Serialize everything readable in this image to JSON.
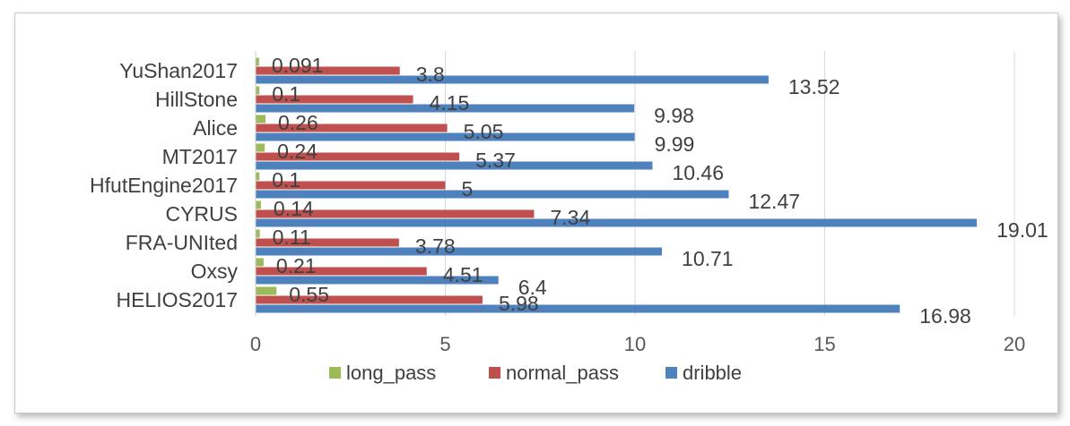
{
  "chart_data": {
    "type": "bar",
    "orientation": "horizontal",
    "categories": [
      "YuShan2017",
      "HillStone",
      "Alice",
      "MT2017",
      "HfutEngine2017",
      "CYRUS",
      "FRA-UNIted",
      "Oxsy",
      "HELIOS2017"
    ],
    "series": [
      {
        "name": "long_pass",
        "color": "#9bbb59",
        "values": [
          0.091,
          0.1,
          0.26,
          0.24,
          0.1,
          0.14,
          0.11,
          0.21,
          0.55
        ],
        "labels": [
          "0.091",
          "0.1",
          "0.26",
          "0.24",
          "0.1",
          "0.14",
          "0.11",
          "0.21",
          "0.55"
        ]
      },
      {
        "name": "normal_pass",
        "color": "#c0504d",
        "values": [
          3.8,
          4.15,
          5.05,
          5.37,
          5,
          7.34,
          3.78,
          4.51,
          5.98
        ],
        "labels": [
          "3.8",
          "4.15",
          "5.05",
          "5.37",
          "5",
          "7.34",
          "3.78",
          "4.51",
          "5.98"
        ]
      },
      {
        "name": "dribble",
        "color": "#4f81bd",
        "values": [
          13.52,
          9.98,
          9.99,
          10.46,
          12.47,
          19.01,
          10.71,
          6.4,
          16.98
        ],
        "labels": [
          "13.52",
          "9.98",
          "9.99",
          "10.46",
          "12.47",
          "19.01",
          "10.71",
          "6.4",
          "16.98"
        ]
      }
    ],
    "xlim": [
      0,
      20
    ],
    "x_ticks": [
      "0",
      "5",
      "10",
      "15",
      "20"
    ],
    "grid": "vertical",
    "legend_position": "bottom",
    "title": "",
    "xlabel": "",
    "ylabel": ""
  }
}
